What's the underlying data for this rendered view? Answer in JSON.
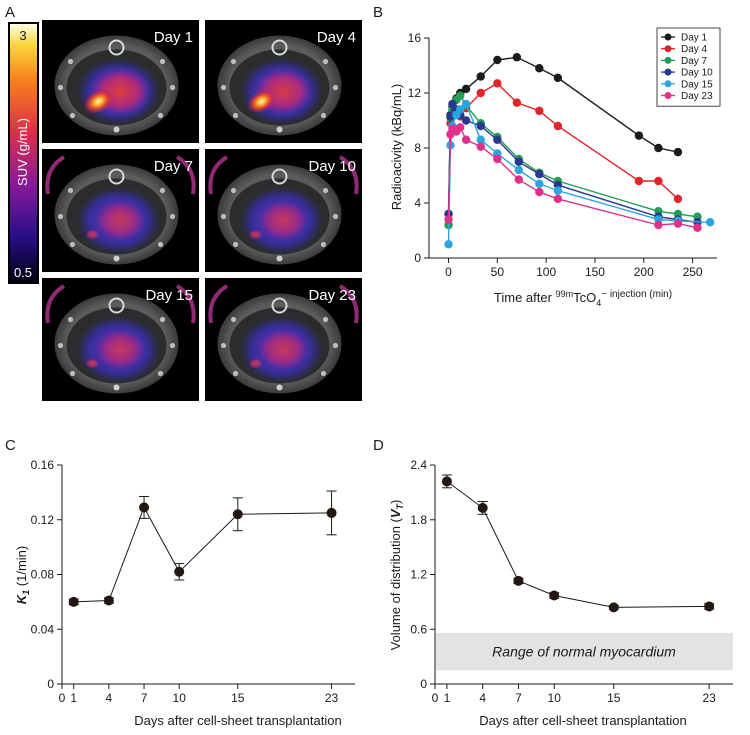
{
  "panels": {
    "a": "A",
    "b": "B",
    "c": "C",
    "d": "D"
  },
  "colors": {
    "day1": "#1b1b1b",
    "day4": "#e3242b",
    "day7": "#229e57",
    "day10": "#2a3791",
    "day15": "#2aa6de",
    "day23": "#e0308a",
    "normal_band": "#e3e3e3",
    "image_bg": "#000000"
  },
  "colorbar": {
    "max_label": "3",
    "min_label": "0.5",
    "label": "SUV (g/mL)"
  },
  "pet_images": [
    {
      "label": "Day 1",
      "uptake": 1.0
    },
    {
      "label": "Day 4",
      "uptake": 0.85
    },
    {
      "label": "Day 7",
      "uptake": 0.35
    },
    {
      "label": "Day 10",
      "uptake": 0.3
    },
    {
      "label": "Day 15",
      "uptake": 0.35
    },
    {
      "label": "Day 23",
      "uptake": 0.4
    }
  ],
  "chart_data": [
    {
      "id": "B",
      "type": "line",
      "title": "",
      "xlabel_prefix": "Time after ",
      "xlabel_sup": "99m",
      "xlabel_mid": "TcO",
      "xlabel_sub": "4",
      "xlabel_suffix": "− injection (min)",
      "ylabel": "Radioacivity (kBq/mL)",
      "xlim": [
        -20,
        275
      ],
      "ylim": [
        0,
        16
      ],
      "xticks": [
        0,
        50,
        100,
        150,
        200,
        250
      ],
      "yticks": [
        0,
        4,
        8,
        12,
        16
      ],
      "legend_position": "top-right",
      "series": [
        {
          "name": "Day 1",
          "color_key": "day1",
          "x": [
            0,
            2,
            4,
            8,
            12,
            18,
            33,
            50,
            70,
            93,
            112,
            195,
            215,
            235
          ],
          "y": [
            3.2,
            10.4,
            11.0,
            11.6,
            12.0,
            12.3,
            13.2,
            14.4,
            14.6,
            13.8,
            13.1,
            8.9,
            8.0,
            7.7
          ]
        },
        {
          "name": "Day 4",
          "color_key": "day4",
          "x": [
            0,
            2,
            4,
            8,
            12,
            18,
            33,
            50,
            70,
            93,
            112,
            195,
            215,
            235
          ],
          "y": [
            2.4,
            9.8,
            10.4,
            10.6,
            10.3,
            10.9,
            12.0,
            12.7,
            11.3,
            10.7,
            9.6,
            5.6,
            5.6,
            4.3
          ]
        },
        {
          "name": "Day 7",
          "color_key": "day7",
          "x": [
            0,
            2,
            4,
            8,
            12,
            18,
            33,
            50,
            72,
            93,
            112,
            215,
            235,
            255
          ],
          "y": [
            2.4,
            10.2,
            10.8,
            11.5,
            11.8,
            11.1,
            9.8,
            8.8,
            7.2,
            6.2,
            5.6,
            3.4,
            3.2,
            3.0
          ]
        },
        {
          "name": "Day 10",
          "color_key": "day10",
          "x": [
            0,
            2,
            4,
            8,
            12,
            18,
            33,
            50,
            72,
            93,
            112,
            215,
            235,
            255
          ],
          "y": [
            3.2,
            10.3,
            11.2,
            10.8,
            10.4,
            10.0,
            9.6,
            8.6,
            7.0,
            6.1,
            5.3,
            3.0,
            2.8,
            2.6
          ]
        },
        {
          "name": "Day 15",
          "color_key": "day15",
          "x": [
            0,
            2,
            4,
            8,
            12,
            18,
            33,
            50,
            72,
            93,
            112,
            215,
            235,
            268
          ],
          "y": [
            1.0,
            8.2,
            9.6,
            10.4,
            10.8,
            11.2,
            8.6,
            7.6,
            6.4,
            5.4,
            4.9,
            2.8,
            2.7,
            2.6
          ]
        },
        {
          "name": "Day 23",
          "color_key": "day23",
          "x": [
            0,
            2,
            4,
            8,
            12,
            18,
            33,
            50,
            72,
            93,
            112,
            215,
            235,
            255
          ],
          "y": [
            2.8,
            9.0,
            9.4,
            9.2,
            9.5,
            8.6,
            8.1,
            7.2,
            5.7,
            4.8,
            4.3,
            2.4,
            2.5,
            2.2
          ]
        }
      ]
    },
    {
      "id": "C",
      "type": "line",
      "title": "",
      "xlabel": "Days after cell-sheet transplantation",
      "ylabel_symbol": "K",
      "ylabel_sub": "1",
      "ylabel_unit": " (1/min)",
      "xlim": [
        0,
        25
      ],
      "ylim": [
        0,
        0.16
      ],
      "xticks": [
        0,
        1,
        4,
        7,
        10,
        15,
        23
      ],
      "yticks": [
        0,
        0.04,
        0.08,
        0.12,
        0.16
      ],
      "ytick_labels": [
        "0",
        "0.04",
        "0.08",
        "0.12",
        "0.16"
      ],
      "series": [
        {
          "name": "K1",
          "x": [
            1,
            4,
            7,
            10,
            15,
            23
          ],
          "y": [
            0.06,
            0.061,
            0.129,
            0.082,
            0.124,
            0.125
          ],
          "err": [
            0.002,
            0.002,
            0.008,
            0.006,
            0.012,
            0.016
          ]
        }
      ]
    },
    {
      "id": "D",
      "type": "line",
      "title": "",
      "xlabel": "Days after cell-sheet transplantation",
      "ylabel_prefix": "Volume of distribution (",
      "ylabel_symbol": "V",
      "ylabel_sub": "T",
      "ylabel_suffix": ")",
      "xlim": [
        0,
        25
      ],
      "ylim": [
        0,
        2.4
      ],
      "xticks": [
        0,
        1,
        4,
        7,
        10,
        15,
        23
      ],
      "yticks": [
        0,
        0.6,
        1.2,
        1.8,
        2.4
      ],
      "ytick_labels": [
        "0",
        "0.6",
        "1.2",
        "1.8",
        "2.4"
      ],
      "band": {
        "from": 0.15,
        "to": 0.56,
        "label": "Range of normal myocardium"
      },
      "series": [
        {
          "name": "VT",
          "x": [
            1,
            4,
            7,
            10,
            15,
            23
          ],
          "y": [
            2.22,
            1.93,
            1.13,
            0.97,
            0.84,
            0.85
          ],
          "err": [
            0.07,
            0.07,
            0.03,
            0.03,
            0.02,
            0.03
          ]
        }
      ]
    }
  ]
}
